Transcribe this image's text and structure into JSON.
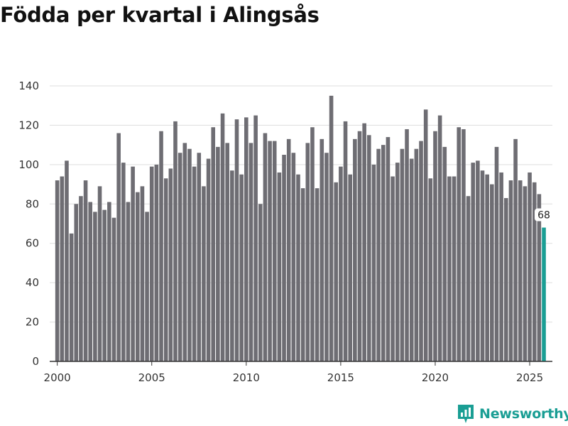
{
  "header": {
    "title": "Födda per kvartal i Alingsås"
  },
  "brand": {
    "name": "Newsworthy",
    "icon": "newsworthy-logo-icon",
    "color": "#1a9e94"
  },
  "colors": {
    "bar": "#6e6d73",
    "highlight": "#1a9e94",
    "grid": "#dddddd",
    "axis": "#333333"
  },
  "chart_data": {
    "type": "bar",
    "title": "Födda per kvartal i Alingsås",
    "xlabel": "",
    "ylabel": "",
    "x_start_year": 2000,
    "x_start_quarter": 1,
    "xlim": [
      1999.6,
      2026.2
    ],
    "ylim": [
      0,
      140
    ],
    "yticks": [
      0,
      20,
      40,
      60,
      80,
      100,
      120,
      140
    ],
    "xticks": [
      2000,
      2005,
      2010,
      2015,
      2020,
      2025
    ],
    "grid": true,
    "highlight_last": true,
    "last_label": "68",
    "values": [
      92,
      94,
      102,
      65,
      80,
      84,
      92,
      81,
      76,
      89,
      77,
      81,
      73,
      116,
      101,
      81,
      99,
      86,
      89,
      76,
      99,
      100,
      117,
      93,
      98,
      122,
      106,
      111,
      108,
      99,
      106,
      89,
      103,
      119,
      109,
      126,
      111,
      97,
      123,
      95,
      124,
      111,
      125,
      80,
      116,
      112,
      112,
      96,
      105,
      113,
      106,
      95,
      88,
      111,
      119,
      88,
      113,
      106,
      135,
      91,
      99,
      122,
      95,
      113,
      117,
      121,
      115,
      100,
      108,
      110,
      114,
      94,
      101,
      108,
      118,
      103,
      108,
      112,
      128,
      93,
      117,
      125,
      109,
      94,
      94,
      119,
      118,
      84,
      101,
      102,
      97,
      95,
      90,
      109,
      96,
      83,
      92,
      113,
      92,
      89,
      96,
      91,
      85,
      68
    ]
  }
}
